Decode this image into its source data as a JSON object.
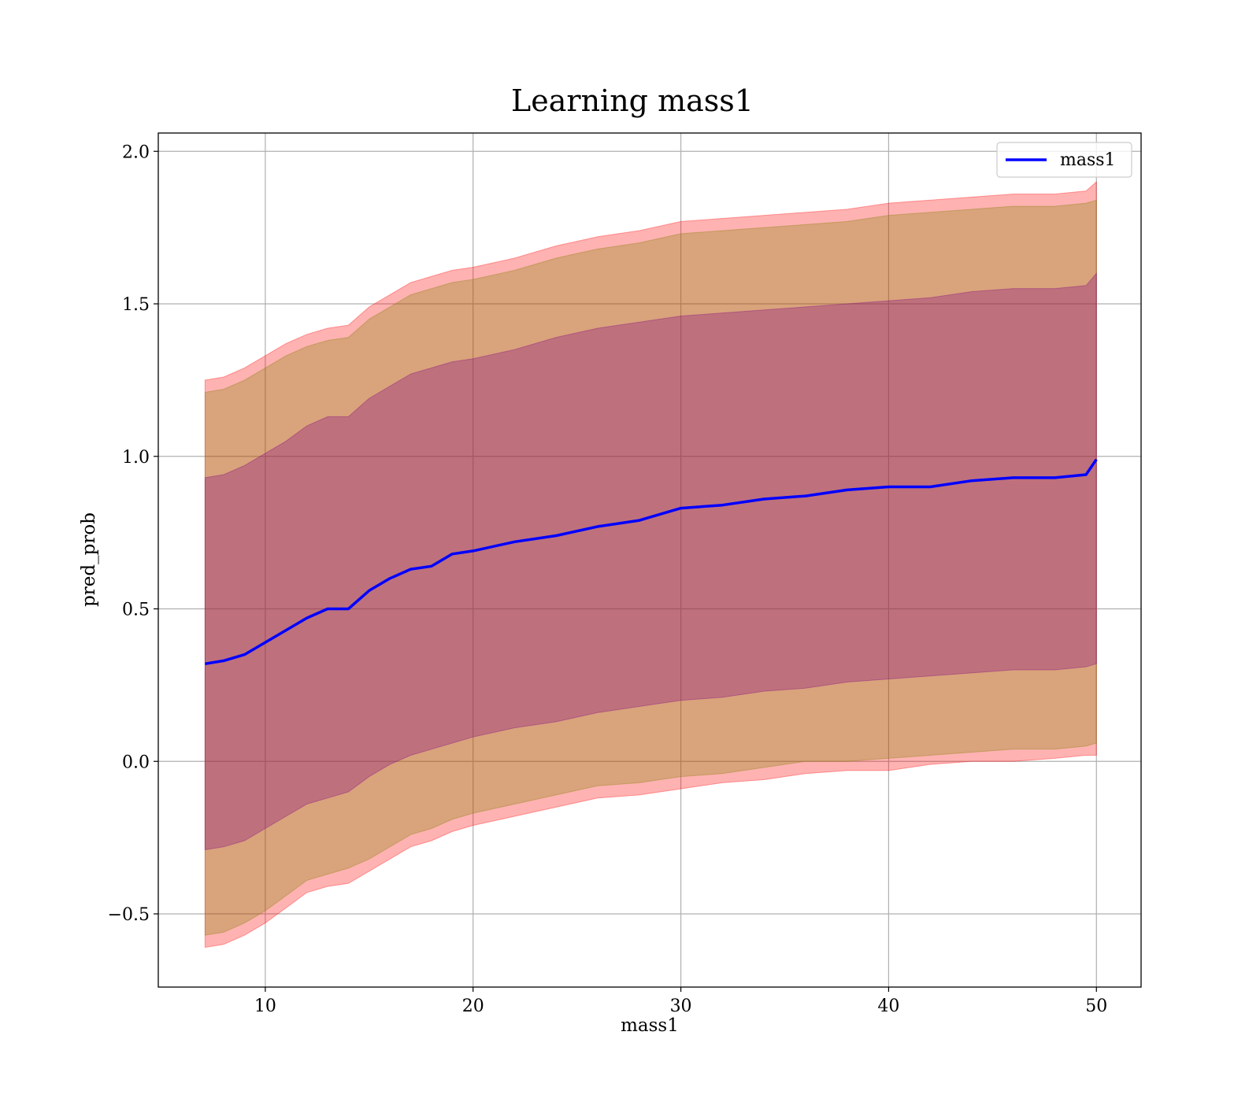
{
  "chart_data": {
    "type": "area",
    "title": "Learning mass1",
    "xlabel": "mass1",
    "ylabel": "pred_prob",
    "xlim": [
      4.85,
      52.15
    ],
    "ylim": [
      -0.74,
      2.06
    ],
    "xticks": [
      10,
      20,
      30,
      40,
      50
    ],
    "yticks": [
      -0.5,
      0.0,
      0.5,
      1.0,
      1.5,
      2.0
    ],
    "xtick_labels": [
      "10",
      "20",
      "30",
      "40",
      "50"
    ],
    "ytick_labels": [
      "−0.5",
      "0.0",
      "0.5",
      "1.0",
      "1.5",
      "2.0"
    ],
    "grid": true,
    "legend": {
      "position": "top-right",
      "entries": [
        "mass1"
      ]
    },
    "x": [
      7.1,
      8.0,
      9.0,
      10.0,
      11.0,
      12.0,
      13.0,
      14.0,
      15.0,
      16.0,
      17.0,
      18.0,
      19.0,
      20.0,
      22.0,
      24.0,
      26.0,
      28.0,
      30.0,
      32.0,
      34.0,
      36.0,
      38.0,
      40.0,
      42.0,
      44.0,
      46.0,
      48.0,
      49.5,
      50.0
    ],
    "series": [
      {
        "name": "mass1",
        "color": "#0000ff",
        "values": [
          0.32,
          0.33,
          0.35,
          0.39,
          0.43,
          0.47,
          0.5,
          0.5,
          0.56,
          0.6,
          0.63,
          0.64,
          0.68,
          0.69,
          0.72,
          0.74,
          0.77,
          0.79,
          0.83,
          0.84,
          0.86,
          0.87,
          0.89,
          0.9,
          0.9,
          0.92,
          0.93,
          0.93,
          0.94,
          0.99
        ]
      }
    ],
    "bands": [
      {
        "color": "#ff0000",
        "opacity": 0.3,
        "lower": [
          -0.61,
          -0.6,
          -0.57,
          -0.53,
          -0.48,
          -0.43,
          -0.41,
          -0.4,
          -0.36,
          -0.32,
          -0.28,
          -0.26,
          -0.23,
          -0.21,
          -0.18,
          -0.15,
          -0.12,
          -0.11,
          -0.09,
          -0.07,
          -0.06,
          -0.04,
          -0.03,
          -0.03,
          -0.01,
          0.0,
          0.0,
          0.01,
          0.02,
          0.02
        ],
        "upper": [
          1.25,
          1.26,
          1.29,
          1.33,
          1.37,
          1.4,
          1.42,
          1.43,
          1.49,
          1.53,
          1.57,
          1.59,
          1.61,
          1.62,
          1.65,
          1.69,
          1.72,
          1.74,
          1.77,
          1.78,
          1.79,
          1.8,
          1.81,
          1.83,
          1.84,
          1.85,
          1.86,
          1.86,
          1.87,
          1.9
        ]
      },
      {
        "color": "#808000",
        "opacity": 0.3,
        "lower": [
          -0.57,
          -0.56,
          -0.53,
          -0.49,
          -0.44,
          -0.39,
          -0.37,
          -0.35,
          -0.32,
          -0.28,
          -0.24,
          -0.22,
          -0.19,
          -0.17,
          -0.14,
          -0.11,
          -0.08,
          -0.07,
          -0.05,
          -0.04,
          -0.02,
          0.0,
          0.0,
          0.01,
          0.02,
          0.03,
          0.04,
          0.04,
          0.05,
          0.06
        ],
        "upper": [
          1.21,
          1.22,
          1.25,
          1.29,
          1.33,
          1.36,
          1.38,
          1.39,
          1.45,
          1.49,
          1.53,
          1.55,
          1.57,
          1.58,
          1.61,
          1.65,
          1.68,
          1.7,
          1.73,
          1.74,
          1.75,
          1.76,
          1.77,
          1.79,
          1.8,
          1.81,
          1.82,
          1.82,
          1.83,
          1.84
        ]
      },
      {
        "color": "#800080",
        "opacity": 0.3,
        "lower": [
          -0.29,
          -0.28,
          -0.26,
          -0.22,
          -0.18,
          -0.14,
          -0.12,
          -0.1,
          -0.05,
          -0.01,
          0.02,
          0.04,
          0.06,
          0.08,
          0.11,
          0.13,
          0.16,
          0.18,
          0.2,
          0.21,
          0.23,
          0.24,
          0.26,
          0.27,
          0.28,
          0.29,
          0.3,
          0.3,
          0.31,
          0.32
        ],
        "upper": [
          0.93,
          0.94,
          0.97,
          1.01,
          1.05,
          1.1,
          1.13,
          1.13,
          1.19,
          1.23,
          1.27,
          1.29,
          1.31,
          1.32,
          1.35,
          1.39,
          1.42,
          1.44,
          1.46,
          1.47,
          1.48,
          1.49,
          1.5,
          1.51,
          1.52,
          1.54,
          1.55,
          1.55,
          1.56,
          1.6
        ]
      }
    ]
  }
}
